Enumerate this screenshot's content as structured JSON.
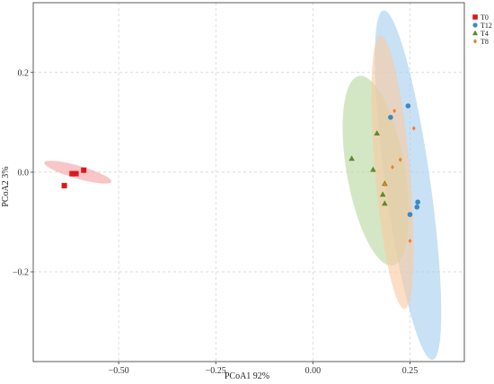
{
  "chart_data": {
    "type": "scatter",
    "xlabel": "PCoA1 92%",
    "ylabel": "PCoA2 3%",
    "xlim": [
      -0.72,
      0.39
    ],
    "ylim": [
      -0.38,
      0.34
    ],
    "xticks": [
      -0.5,
      -0.25,
      0.0,
      0.25
    ],
    "xtick_labels": [
      "−0.50",
      "−0.25",
      "0.00",
      "0.25"
    ],
    "yticks": [
      -0.2,
      0.0,
      0.2
    ],
    "ytick_labels": [
      "−0.2",
      "0.0",
      "0.2"
    ],
    "grid": true,
    "legend_position": "top-right",
    "series": [
      {
        "name": "T0",
        "marker": "square",
        "color": "#d7191c",
        "ellipse_color": "#f4a3a4",
        "ellipse": {
          "cx": -0.605,
          "cy": 0.0,
          "rx": 0.09,
          "ry": 0.013,
          "angle_deg": 16
        },
        "points": [
          [
            -0.64,
            -0.027
          ],
          [
            -0.62,
            -0.003
          ],
          [
            -0.61,
            -0.003
          ],
          [
            -0.59,
            0.004
          ]
        ]
      },
      {
        "name": "T12",
        "marker": "circle",
        "color": "#3d88c0",
        "ellipse_color": "#a6cfee",
        "ellipse": {
          "cx": 0.245,
          "cy": -0.026,
          "rx": 0.058,
          "ry": 0.354,
          "angle_deg": -8
        },
        "points": [
          [
            0.2,
            0.11
          ],
          [
            0.245,
            0.133
          ],
          [
            0.27,
            -0.06
          ],
          [
            0.268,
            -0.07
          ],
          [
            0.25,
            -0.085
          ]
        ]
      },
      {
        "name": "T4",
        "marker": "triangle",
        "color": "#5a8c2c",
        "ellipse_color": "#b9d9a0",
        "ellipse": {
          "cx": 0.162,
          "cy": 0.003,
          "rx": 0.075,
          "ry": 0.193,
          "angle_deg": -10
        },
        "points": [
          [
            0.1,
            0.027
          ],
          [
            0.155,
            0.005
          ],
          [
            0.165,
            0.078
          ],
          [
            0.18,
            -0.045
          ],
          [
            0.185,
            -0.063
          ],
          [
            0.185,
            -0.023
          ]
        ]
      },
      {
        "name": "T8",
        "marker": "diamond",
        "color": "#f07f2d",
        "ellipse_color": "#f8c9a2",
        "ellipse": {
          "cx": 0.205,
          "cy": 0.0,
          "rx": 0.045,
          "ry": 0.275,
          "angle_deg": -5
        },
        "points": [
          [
            0.21,
            0.123
          ],
          [
            0.26,
            0.088
          ],
          [
            0.225,
            0.025
          ],
          [
            0.205,
            0.01
          ],
          [
            0.185,
            -0.025
          ],
          [
            0.25,
            -0.138
          ]
        ]
      }
    ]
  }
}
